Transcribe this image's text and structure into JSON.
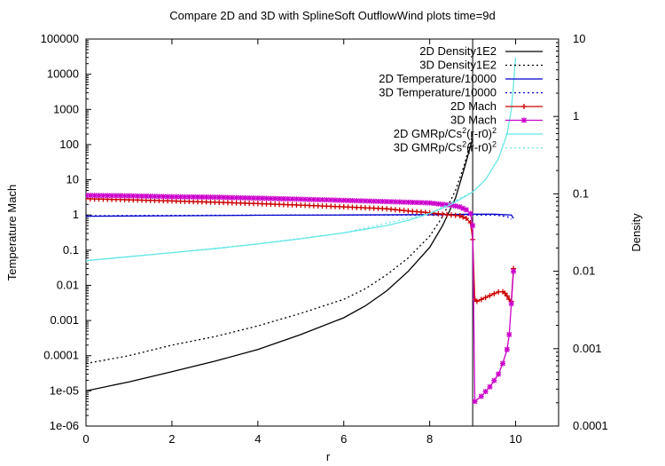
{
  "chart_data": {
    "type": "line",
    "title": "Compare 2D and 3D with SplineSoft OutflowWind plots time=9d",
    "xlabel": "r",
    "ylabel_left": "Temperature  Mach",
    "ylabel_right": "Density",
    "xlim": [
      0,
      11
    ],
    "ylim_left": [
      1e-06,
      100000
    ],
    "ylim_right": [
      0.0001,
      10
    ],
    "yscale_left": "log",
    "yscale_right": "log",
    "x_ticks": [
      0,
      2,
      4,
      6,
      8,
      10
    ],
    "x_tick_labels": [
      "0",
      "2",
      "4",
      "6",
      "8",
      "10"
    ],
    "y_left_ticks": [
      1e-06,
      1e-05,
      0.0001,
      0.001,
      0.01,
      0.1,
      1,
      10,
      100,
      1000,
      10000,
      100000
    ],
    "y_left_tick_labels": [
      "1e-06",
      "1e-05",
      "0.0001",
      "0.001",
      "0.01",
      "0.1",
      "1",
      "10",
      "100",
      "1000",
      "10000",
      "100000"
    ],
    "y_right_ticks": [
      0.0001,
      0.001,
      0.01,
      0.1,
      1,
      10
    ],
    "y_right_tick_labels": [
      "0.0001",
      "0.001",
      "0.01",
      "0.1",
      "1",
      "10"
    ],
    "legend_position": "top-right",
    "vertical_line_x": 9.0,
    "series": [
      {
        "name": "2D Density1E2",
        "axis": "left",
        "color": "#000000",
        "style": "solid",
        "x": [
          0,
          1,
          2,
          3,
          4,
          5,
          6,
          6.5,
          7,
          7.5,
          8,
          8.3,
          8.6,
          8.8,
          9.0
        ],
        "y": [
          1e-05,
          1.8e-05,
          3.5e-05,
          7e-05,
          0.00015,
          0.0004,
          0.0012,
          0.0026,
          0.007,
          0.025,
          0.12,
          0.5,
          3,
          20,
          150
        ]
      },
      {
        "name": "3D Density1E2",
        "axis": "left",
        "color": "#000000",
        "style": "dotted",
        "x": [
          0,
          1,
          2,
          3,
          4,
          5,
          6,
          6.5,
          7,
          7.5,
          8,
          8.3,
          8.6,
          8.8,
          9.0
        ],
        "y": [
          6e-05,
          0.0001,
          0.0002,
          0.00035,
          0.0007,
          0.0016,
          0.004,
          0.008,
          0.02,
          0.06,
          0.25,
          0.9,
          5,
          25,
          200
        ]
      },
      {
        "name": "2D Temperature/10000",
        "axis": "left",
        "color": "#0000cc",
        "style": "solid",
        "x": [
          0,
          2,
          4,
          6,
          8,
          8.5,
          9.0,
          9.5,
          9.9,
          9.95
        ],
        "y": [
          0.92,
          0.95,
          0.98,
          1.0,
          1.02,
          1.03,
          1.05,
          1.05,
          1.0,
          0.8
        ]
      },
      {
        "name": "3D Temperature/10000",
        "axis": "left",
        "color": "#0000cc",
        "style": "dotted",
        "x": [
          0,
          2,
          4,
          6,
          8,
          8.5,
          9.0,
          9.5,
          9.8,
          9.9
        ],
        "y": [
          0.95,
          0.97,
          0.99,
          1.0,
          1.0,
          1.0,
          1.0,
          1.0,
          0.9,
          0.75
        ]
      },
      {
        "name": "2D Mach",
        "axis": "left",
        "color": "#cc0000",
        "style": "points-line",
        "x": [
          0,
          1,
          2,
          3,
          4,
          5,
          6,
          7,
          7.5,
          8,
          8.3,
          8.5,
          8.7,
          8.85,
          8.95,
          9.0,
          9.05,
          9.1,
          9.3,
          9.5,
          9.6,
          9.7,
          9.75,
          9.8,
          9.85,
          9.9,
          9.95
        ],
        "y": [
          2.9,
          2.7,
          2.5,
          2.3,
          2.1,
          1.9,
          1.7,
          1.5,
          1.3,
          1.15,
          1.05,
          1.0,
          0.95,
          0.8,
          0.6,
          0.2,
          0.004,
          0.0035,
          0.0045,
          0.0058,
          0.0065,
          0.0066,
          0.006,
          0.005,
          0.004,
          0.0035,
          0.03
        ]
      },
      {
        "name": "3D Mach",
        "axis": "left",
        "color": "#cc00cc",
        "style": "points-line",
        "x": [
          0,
          1,
          2,
          3,
          4,
          5,
          6,
          7,
          7.5,
          8,
          8.3,
          8.5,
          8.7,
          8.85,
          8.95,
          9.0,
          9.05,
          9.2,
          9.4,
          9.6,
          9.7,
          9.8,
          9.85,
          9.9,
          9.95
        ],
        "y": [
          3.6,
          3.5,
          3.3,
          3.2,
          3.0,
          2.8,
          2.6,
          2.4,
          2.3,
          2.2,
          2.0,
          1.9,
          1.7,
          1.4,
          1.1,
          0.5,
          5e-06,
          7e-06,
          1.3e-05,
          3e-05,
          6e-05,
          0.00015,
          0.0004,
          0.003,
          0.025
        ]
      },
      {
        "name": "2D GMRp/Cs^2(r-r0)^2",
        "axis": "left",
        "color": "#66e6e6",
        "style": "solid",
        "x": [
          0,
          1,
          2,
          3,
          4,
          5,
          6,
          7,
          7.5,
          8,
          8.5,
          9.0,
          9.3,
          9.6,
          9.8,
          9.9,
          9.95,
          10.0
        ],
        "y": [
          0.05,
          0.065,
          0.085,
          0.11,
          0.15,
          0.21,
          0.31,
          0.5,
          0.7,
          1.1,
          2.0,
          4.5,
          10,
          40,
          200,
          1000,
          5000,
          30000
        ]
      },
      {
        "name": "3D GMRp/Cs^2(r-r0)^2",
        "axis": "left",
        "color": "#66e6e6",
        "style": "dotted",
        "x": [
          0,
          2,
          4,
          6,
          8,
          9.0
        ],
        "y": [
          0.05,
          0.085,
          0.15,
          0.31,
          1.1,
          4.5
        ]
      }
    ],
    "legend_labels": [
      {
        "pre": "2D Density1E2",
        "sup1": "",
        "mid": "",
        "sup2": ""
      },
      {
        "pre": "3D Density1E2",
        "sup1": "",
        "mid": "",
        "sup2": ""
      },
      {
        "pre": "2D Temperature/10000",
        "sup1": "",
        "mid": "",
        "sup2": ""
      },
      {
        "pre": "3D Temperature/10000",
        "sup1": "",
        "mid": "",
        "sup2": ""
      },
      {
        "pre": "2D Mach",
        "sup1": "",
        "mid": "",
        "sup2": ""
      },
      {
        "pre": "3D Mach",
        "sup1": "",
        "mid": "",
        "sup2": ""
      },
      {
        "pre": "2D GMRp/Cs",
        "sup1": "2",
        "mid": "(r-r0)",
        "sup2": "2"
      },
      {
        "pre": "3D GMRp/Cs",
        "sup1": "2",
        "mid": "(r-r0)",
        "sup2": "2"
      }
    ]
  }
}
